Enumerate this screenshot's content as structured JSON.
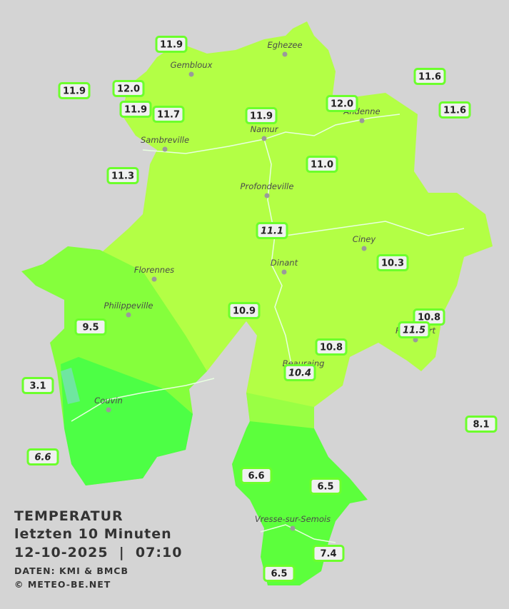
{
  "header": {
    "title": "TEMPERATUR",
    "subtitle": "letzten 10 Minuten",
    "timestamp": "12-10-2025  |  07:10",
    "source": "DATEN: KMI & BMCB",
    "copyright": "© METEO-BE.NET"
  },
  "towns": [
    "Eghezee",
    "Gembloux",
    "Andenne",
    "Namur",
    "Sambreville",
    "Profondeville",
    "Ciney",
    "Dinant",
    "Florennes",
    "Philippeville",
    "Rochefort",
    "Beauraing",
    "Couvin",
    "Vresse-sur-Semois"
  ],
  "stations": [
    {
      "label": "11.9"
    },
    {
      "label": "11.9"
    },
    {
      "label": "12.0"
    },
    {
      "label": "11.9"
    },
    {
      "label": "11.7"
    },
    {
      "label": "11.9"
    },
    {
      "label": "12.0"
    },
    {
      "label": "11.6"
    },
    {
      "label": "11.6"
    },
    {
      "label": "11.3"
    },
    {
      "label": "11.0"
    },
    {
      "label": "11.1",
      "italic": true
    },
    {
      "label": "10.3"
    },
    {
      "label": "10.9"
    },
    {
      "label": "9.5"
    },
    {
      "label": "10.8"
    },
    {
      "label": "11.5",
      "italic": true
    },
    {
      "label": "10.8"
    },
    {
      "label": "10.4",
      "italic": true
    },
    {
      "label": "3.1"
    },
    {
      "label": "8.1"
    },
    {
      "label": "6.6",
      "italic": true
    },
    {
      "label": "6.6"
    },
    {
      "label": "6.5"
    },
    {
      "label": "7.4"
    },
    {
      "label": "6.5"
    }
  ]
}
